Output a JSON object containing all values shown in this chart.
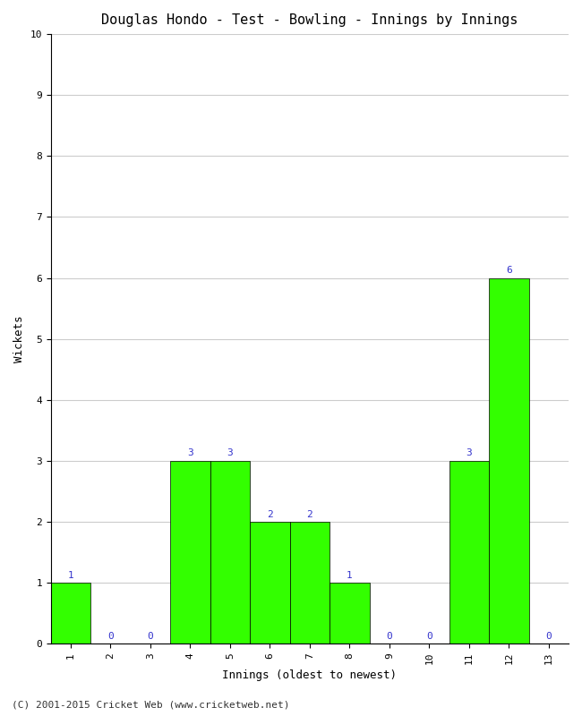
{
  "title": "Douglas Hondo - Test - Bowling - Innings by Innings",
  "xlabel": "Innings (oldest to newest)",
  "ylabel": "Wickets",
  "categories": [
    "1",
    "2",
    "3",
    "4",
    "5",
    "6",
    "7",
    "8",
    "9",
    "10",
    "11",
    "12",
    "13"
  ],
  "values": [
    1,
    0,
    0,
    3,
    3,
    2,
    2,
    1,
    0,
    0,
    3,
    6,
    0
  ],
  "bar_color": "#33ff00",
  "bar_edge_color": "#000000",
  "label_color": "#3333cc",
  "ylim": [
    0,
    10
  ],
  "yticks": [
    0,
    1,
    2,
    3,
    4,
    5,
    6,
    7,
    8,
    9,
    10
  ],
  "background_color": "#ffffff",
  "grid_color": "#cccccc",
  "title_fontsize": 11,
  "axis_label_fontsize": 9,
  "tick_fontsize": 8,
  "label_fontsize": 8,
  "footer": "(C) 2001-2015 Cricket Web (www.cricketweb.net)"
}
